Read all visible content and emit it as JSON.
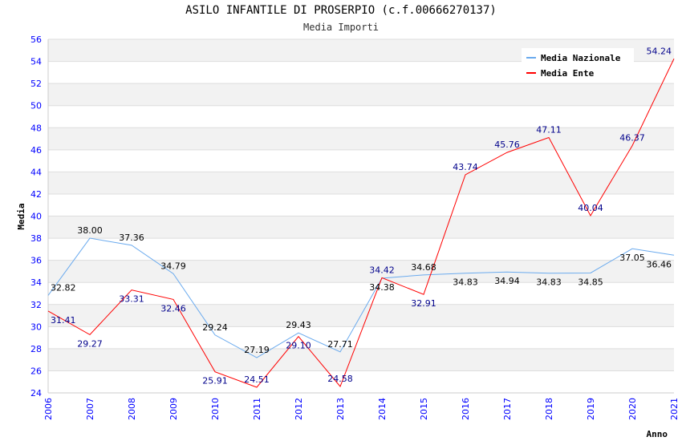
{
  "chart_data": {
    "type": "line",
    "title": "ASILO INFANTILE DI PROSERPIO (c.f.00666270137)",
    "subtitle": "Media Importi",
    "xlabel": "Anno",
    "ylabel": "Media",
    "ylim": [
      24,
      56
    ],
    "yticks": [
      24,
      26,
      28,
      30,
      32,
      34,
      36,
      38,
      40,
      42,
      44,
      46,
      48,
      50,
      52,
      54,
      56
    ],
    "x": [
      2006,
      2007,
      2008,
      2009,
      2010,
      2011,
      2012,
      2013,
      2014,
      2015,
      2016,
      2017,
      2018,
      2019,
      2020,
      2021
    ],
    "legend_position": "top-right",
    "series": [
      {
        "name": "Media Nazionale",
        "color": "#6aaaee",
        "label_color": "#000000",
        "values": [
          32.82,
          38.0,
          37.36,
          34.79,
          29.24,
          27.19,
          29.43,
          27.71,
          34.38,
          34.68,
          34.83,
          34.94,
          34.83,
          34.85,
          37.05,
          36.46
        ]
      },
      {
        "name": "Media Ente",
        "color": "#ff0000",
        "label_color": "#00008b",
        "values": [
          31.41,
          29.27,
          33.31,
          32.46,
          25.91,
          24.51,
          29.1,
          24.58,
          34.42,
          32.91,
          43.74,
          45.76,
          47.11,
          40.04,
          46.37,
          54.24
        ]
      }
    ]
  }
}
